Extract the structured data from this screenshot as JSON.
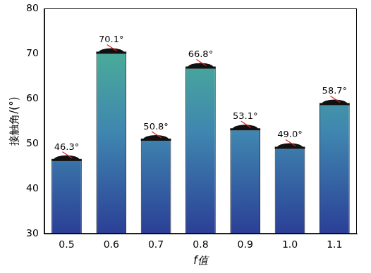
{
  "chart_data": {
    "type": "bar",
    "x_label": "f值",
    "y_label": "接触角/(°)",
    "categories": [
      "0.5",
      "0.6",
      "0.7",
      "0.8",
      "0.9",
      "1.0",
      "1.1"
    ],
    "values": [
      46.3,
      70.1,
      50.8,
      66.8,
      53.1,
      49.0,
      58.7
    ],
    "value_labels": [
      "46.3°",
      "70.1°",
      "50.8°",
      "66.8°",
      "53.1°",
      "49.0°",
      "58.7°"
    ],
    "data_labels": true,
    "color": "#4fbf8c",
    "ylim": [
      30,
      80
    ],
    "yticks": [
      30,
      40,
      50,
      60,
      70,
      80
    ],
    "grid": false
  }
}
